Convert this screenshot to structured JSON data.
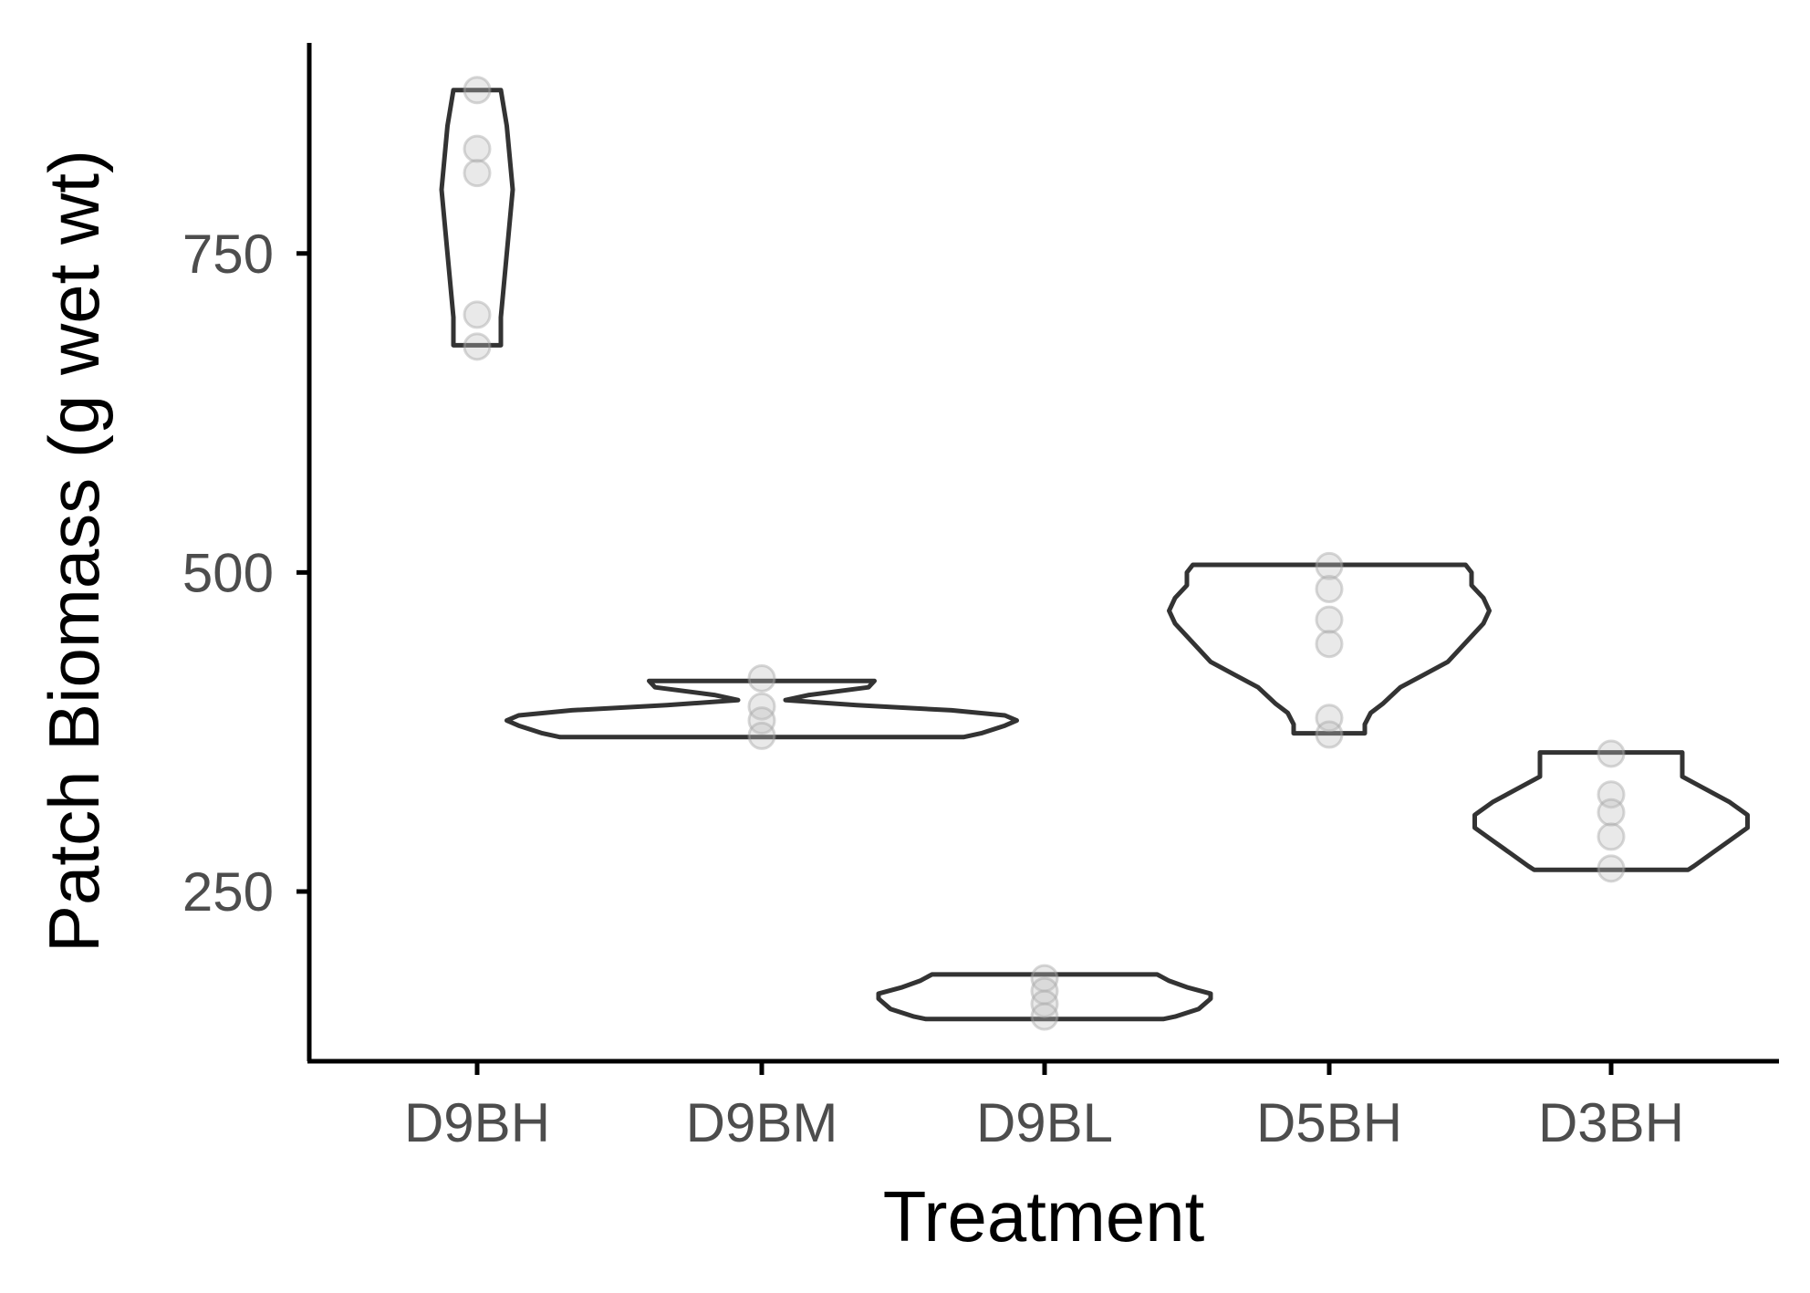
{
  "chart_data": {
    "type": "violin",
    "xlabel": "Treatment",
    "ylabel": "Patch Biomass (g wet wt)",
    "ylim": [
      117,
      915
    ],
    "yticks": [
      250,
      500,
      750
    ],
    "categories": [
      "D9BH",
      "D9BM",
      "D9BL",
      "D5BH",
      "D3BH"
    ],
    "groups": [
      {
        "name": "D9BH",
        "points": [
          878,
          832,
          813,
          702,
          677
        ],
        "violin": [
          [
            678,
            4
          ],
          [
            700,
            4
          ],
          [
            750,
            5
          ],
          [
            800,
            6
          ],
          [
            850,
            5
          ],
          [
            878,
            4
          ]
        ]
      },
      {
        "name": "D9BM",
        "points": [
          417,
          395,
          384,
          372
        ],
        "violin": [
          [
            371,
            34
          ],
          [
            374,
            37
          ],
          [
            380,
            41
          ],
          [
            384,
            43
          ],
          [
            388,
            41
          ],
          [
            392,
            32
          ],
          [
            396,
            16
          ],
          [
            400,
            4
          ],
          [
            404,
            8
          ],
          [
            410,
            18
          ],
          [
            415,
            19
          ]
        ]
      },
      {
        "name": "D9BL",
        "points": [
          182,
          172,
          162,
          152
        ],
        "violin": [
          [
            150,
            20
          ],
          [
            152,
            22
          ],
          [
            158,
            26
          ],
          [
            166,
            28
          ],
          [
            170,
            28
          ],
          [
            175,
            24
          ],
          [
            180,
            21
          ],
          [
            185,
            19
          ]
        ]
      },
      {
        "name": "D5BH",
        "points": [
          505,
          487,
          463,
          444,
          386,
          373
        ],
        "violin": [
          [
            374,
            6
          ],
          [
            381,
            6
          ],
          [
            390,
            7
          ],
          [
            397,
            9
          ],
          [
            410,
            12
          ],
          [
            420,
            16
          ],
          [
            430,
            20
          ],
          [
            440,
            22
          ],
          [
            450,
            24
          ],
          [
            460,
            26
          ],
          [
            470,
            27
          ],
          [
            480,
            26
          ],
          [
            490,
            24
          ],
          [
            500,
            24
          ],
          [
            506,
            23
          ]
        ]
      },
      {
        "name": "D3BH",
        "points": [
          358,
          326,
          312,
          293,
          268
        ],
        "violin": [
          [
            267,
            13
          ],
          [
            270,
            14
          ],
          [
            280,
            17
          ],
          [
            290,
            20
          ],
          [
            300,
            23
          ],
          [
            310,
            23
          ],
          [
            320,
            20
          ],
          [
            330,
            16
          ],
          [
            340,
            12
          ],
          [
            350,
            12
          ],
          [
            359,
            12
          ]
        ]
      }
    ]
  }
}
